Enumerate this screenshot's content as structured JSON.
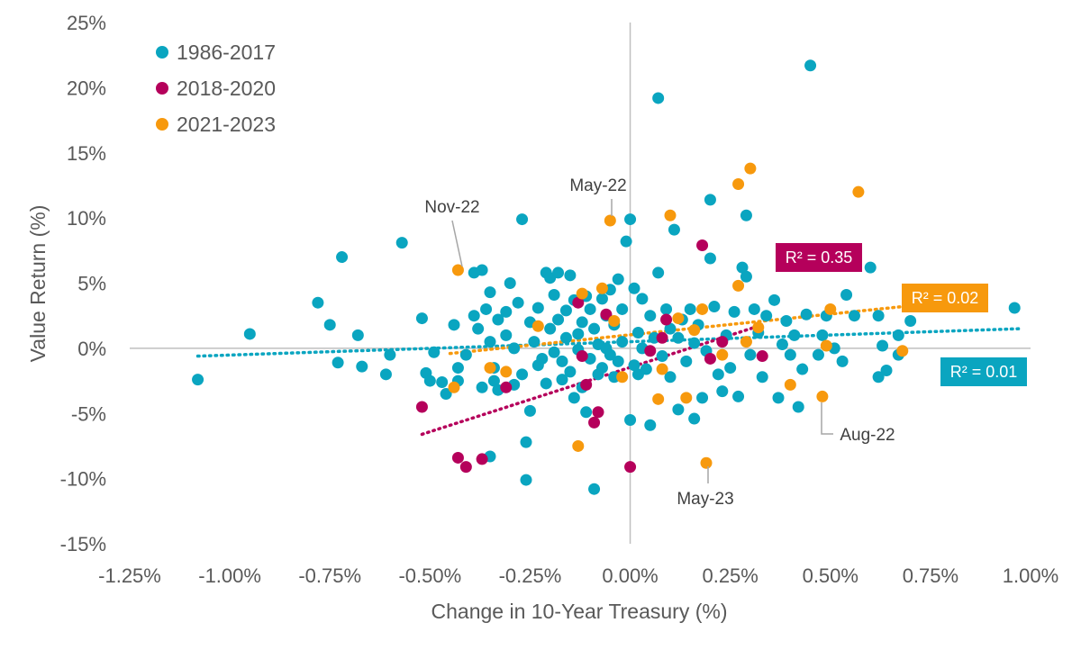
{
  "chart_data": {
    "type": "scatter",
    "xlabel": "Change in 10-Year Treasury (%)",
    "ylabel": "Value Return (%)",
    "xlim": [
      -1.25,
      1.0
    ],
    "ylim": [
      -15,
      25
    ],
    "x_ticks": [
      -1.25,
      -1.0,
      -0.75,
      -0.5,
      -0.25,
      0.0,
      0.25,
      0.5,
      0.75,
      1.0
    ],
    "x_tick_labels": [
      "-1.25%",
      "-1.00%",
      "-0.75%",
      "-0.50%",
      "-0.25%",
      "0.00%",
      "0.25%",
      "0.50%",
      "0.75%",
      "1.00%"
    ],
    "y_ticks": [
      -15,
      -10,
      -5,
      0,
      5,
      10,
      15,
      20,
      25
    ],
    "y_tick_labels": [
      "-15%",
      "-10%",
      "-5%",
      "0%",
      "5%",
      "10%",
      "15%",
      "20%",
      "25%"
    ],
    "grid": false,
    "legend_position": "top-left",
    "series": [
      {
        "name": "1986-2017",
        "color": "#0aa5c0",
        "trend": {
          "x": [
            -1.08,
            0.97
          ],
          "y": [
            -0.6,
            1.5
          ],
          "r2_label": "R² = 0.01"
        },
        "points": [
          [
            -1.08,
            -2.4
          ],
          [
            -0.95,
            1.1
          ],
          [
            -0.72,
            7.0
          ],
          [
            -0.78,
            3.5
          ],
          [
            -0.75,
            1.8
          ],
          [
            -0.73,
            -1.1
          ],
          [
            -0.68,
            1.0
          ],
          [
            -0.67,
            -1.4
          ],
          [
            -0.61,
            -2.0
          ],
          [
            -0.6,
            -0.5
          ],
          [
            -0.57,
            8.1
          ],
          [
            -0.52,
            2.3
          ],
          [
            -0.51,
            -1.9
          ],
          [
            -0.5,
            -2.5
          ],
          [
            -0.49,
            -0.3
          ],
          [
            -0.47,
            -2.6
          ],
          [
            -0.46,
            -3.5
          ],
          [
            -0.44,
            1.8
          ],
          [
            -0.43,
            -1.5
          ],
          [
            -0.43,
            -2.5
          ],
          [
            -0.41,
            -0.5
          ],
          [
            -0.39,
            2.5
          ],
          [
            -0.39,
            5.8
          ],
          [
            -0.38,
            1.5
          ],
          [
            -0.37,
            -3.0
          ],
          [
            -0.37,
            6.0
          ],
          [
            -0.36,
            3.0
          ],
          [
            -0.35,
            4.3
          ],
          [
            -0.35,
            0.5
          ],
          [
            -0.35,
            -8.3
          ],
          [
            -0.34,
            -1.5
          ],
          [
            -0.34,
            -2.5
          ],
          [
            -0.33,
            2.2
          ],
          [
            -0.33,
            -3.2
          ],
          [
            -0.31,
            1.0
          ],
          [
            -0.31,
            2.8
          ],
          [
            -0.3,
            5.0
          ],
          [
            -0.29,
            0.0
          ],
          [
            -0.29,
            -2.8
          ],
          [
            -0.28,
            3.5
          ],
          [
            -0.27,
            9.9
          ],
          [
            -0.27,
            -2.0
          ],
          [
            -0.26,
            -7.2
          ],
          [
            -0.26,
            -10.1
          ],
          [
            -0.25,
            -4.8
          ],
          [
            -0.25,
            2.0
          ],
          [
            -0.24,
            0.5
          ],
          [
            -0.23,
            -1.3
          ],
          [
            -0.23,
            3.1
          ],
          [
            -0.22,
            -0.8
          ],
          [
            -0.21,
            5.8
          ],
          [
            -0.21,
            -2.7
          ],
          [
            -0.2,
            1.5
          ],
          [
            -0.2,
            5.4
          ],
          [
            -0.19,
            -0.3
          ],
          [
            -0.19,
            4.1
          ],
          [
            -0.18,
            2.2
          ],
          [
            -0.18,
            5.8
          ],
          [
            -0.17,
            -2.4
          ],
          [
            -0.17,
            -1.0
          ],
          [
            -0.16,
            2.9
          ],
          [
            -0.16,
            0.8
          ],
          [
            -0.15,
            5.6
          ],
          [
            -0.15,
            -1.8
          ],
          [
            -0.14,
            3.7
          ],
          [
            -0.14,
            -3.8
          ],
          [
            -0.13,
            -0.1
          ],
          [
            -0.13,
            1.1
          ],
          [
            -0.12,
            -3.0
          ],
          [
            -0.12,
            2.0
          ],
          [
            -0.11,
            4.0
          ],
          [
            -0.11,
            -4.9
          ],
          [
            -0.1,
            3.0
          ],
          [
            -0.1,
            -0.8
          ],
          [
            -0.09,
            -10.8
          ],
          [
            -0.09,
            1.5
          ],
          [
            -0.08,
            -2.0
          ],
          [
            -0.08,
            0.3
          ],
          [
            -0.07,
            3.8
          ],
          [
            -0.07,
            -1.5
          ],
          [
            -0.06,
            2.5
          ],
          [
            -0.06,
            0.0
          ],
          [
            -0.05,
            4.5
          ],
          [
            -0.05,
            -0.5
          ],
          [
            -0.04,
            1.8
          ],
          [
            -0.04,
            -2.2
          ],
          [
            -0.03,
            5.3
          ],
          [
            -0.03,
            -1.0
          ],
          [
            -0.02,
            3.0
          ],
          [
            -0.02,
            0.5
          ],
          [
            -0.01,
            8.2
          ],
          [
            0.0,
            9.9
          ],
          [
            0.0,
            -5.5
          ],
          [
            0.01,
            -1.3
          ],
          [
            0.01,
            4.6
          ],
          [
            0.02,
            1.2
          ],
          [
            0.02,
            -2.0
          ],
          [
            0.03,
            3.8
          ],
          [
            0.03,
            0.0
          ],
          [
            0.04,
            -1.6
          ],
          [
            0.05,
            -5.9
          ],
          [
            0.05,
            2.5
          ],
          [
            0.06,
            0.8
          ],
          [
            0.07,
            19.2
          ],
          [
            0.07,
            5.8
          ],
          [
            0.08,
            -0.6
          ],
          [
            0.09,
            3.0
          ],
          [
            0.1,
            1.5
          ],
          [
            0.1,
            -2.2
          ],
          [
            0.11,
            9.1
          ],
          [
            0.12,
            -4.7
          ],
          [
            0.12,
            0.8
          ],
          [
            0.13,
            2.2
          ],
          [
            0.14,
            -1.0
          ],
          [
            0.15,
            3.0
          ],
          [
            0.16,
            -5.4
          ],
          [
            0.16,
            0.4
          ],
          [
            0.17,
            1.8
          ],
          [
            0.18,
            -3.8
          ],
          [
            0.19,
            -0.2
          ],
          [
            0.2,
            11.4
          ],
          [
            0.2,
            6.9
          ],
          [
            0.21,
            3.2
          ],
          [
            0.22,
            -2.0
          ],
          [
            0.23,
            -3.3
          ],
          [
            0.24,
            1.0
          ],
          [
            0.25,
            -1.5
          ],
          [
            0.26,
            2.8
          ],
          [
            0.27,
            -3.7
          ],
          [
            0.28,
            6.2
          ],
          [
            0.29,
            10.2
          ],
          [
            0.29,
            5.5
          ],
          [
            0.3,
            -0.5
          ],
          [
            0.31,
            3.0
          ],
          [
            0.32,
            1.2
          ],
          [
            0.33,
            -2.2
          ],
          [
            0.34,
            2.5
          ],
          [
            0.36,
            3.7
          ],
          [
            0.37,
            -3.8
          ],
          [
            0.38,
            0.3
          ],
          [
            0.39,
            2.1
          ],
          [
            0.4,
            -0.5
          ],
          [
            0.41,
            1.0
          ],
          [
            0.42,
            -4.5
          ],
          [
            0.43,
            -1.6
          ],
          [
            0.44,
            2.6
          ],
          [
            0.45,
            21.7
          ],
          [
            0.47,
            -0.5
          ],
          [
            0.48,
            1.0
          ],
          [
            0.49,
            2.5
          ],
          [
            0.51,
            0.0
          ],
          [
            0.53,
            -1.0
          ],
          [
            0.54,
            4.1
          ],
          [
            0.56,
            2.5
          ],
          [
            0.6,
            6.2
          ],
          [
            0.62,
            2.5
          ],
          [
            0.62,
            -2.2
          ],
          [
            0.63,
            0.2
          ],
          [
            0.64,
            -1.7
          ],
          [
            0.67,
            1.0
          ],
          [
            0.67,
            -0.5
          ],
          [
            0.7,
            2.1
          ],
          [
            0.96,
            3.1
          ]
        ]
      },
      {
        "name": "2018-2020",
        "color": "#b5005b",
        "trend": {
          "x": [
            -0.52,
            0.32
          ],
          "y": [
            -6.6,
            1.7
          ],
          "r2_label": "R² = 0.35"
        },
        "points": [
          [
            -0.52,
            -4.5
          ],
          [
            -0.43,
            -8.4
          ],
          [
            -0.41,
            -9.1
          ],
          [
            -0.37,
            -8.5
          ],
          [
            -0.31,
            -3.0
          ],
          [
            -0.13,
            3.5
          ],
          [
            -0.12,
            -0.6
          ],
          [
            -0.11,
            -2.8
          ],
          [
            -0.09,
            -5.7
          ],
          [
            -0.08,
            -4.9
          ],
          [
            -0.06,
            2.6
          ],
          [
            0.0,
            -9.1
          ],
          [
            0.05,
            -0.2
          ],
          [
            0.08,
            0.8
          ],
          [
            0.09,
            2.2
          ],
          [
            0.18,
            7.9
          ],
          [
            0.2,
            -0.8
          ],
          [
            0.23,
            0.5
          ],
          [
            0.33,
            -0.6
          ]
        ]
      },
      {
        "name": "2021-2023",
        "color": "#f7990d",
        "trend": {
          "x": [
            -0.45,
            0.68
          ],
          "y": [
            -0.4,
            3.2
          ],
          "r2_label": "R² = 0.02"
        },
        "points": [
          [
            -0.43,
            6.0
          ],
          [
            -0.44,
            -3.0
          ],
          [
            -0.35,
            -1.5
          ],
          [
            -0.31,
            -1.8
          ],
          [
            -0.23,
            1.7
          ],
          [
            -0.13,
            -7.5
          ],
          [
            -0.12,
            4.2
          ],
          [
            -0.07,
            4.6
          ],
          [
            -0.05,
            9.8
          ],
          [
            -0.04,
            2.1
          ],
          [
            -0.02,
            -2.2
          ],
          [
            0.07,
            -3.9
          ],
          [
            0.08,
            -1.6
          ],
          [
            0.1,
            10.2
          ],
          [
            0.12,
            2.3
          ],
          [
            0.14,
            -3.8
          ],
          [
            0.16,
            1.4
          ],
          [
            0.18,
            3.0
          ],
          [
            0.19,
            -8.8
          ],
          [
            0.23,
            -0.5
          ],
          [
            0.27,
            12.6
          ],
          [
            0.27,
            4.8
          ],
          [
            0.29,
            0.5
          ],
          [
            0.3,
            13.8
          ],
          [
            0.32,
            1.6
          ],
          [
            0.4,
            -2.8
          ],
          [
            0.48,
            -3.7
          ],
          [
            0.49,
            0.2
          ],
          [
            0.5,
            3.0
          ],
          [
            0.57,
            12.0
          ],
          [
            0.68,
            -0.2
          ]
        ]
      }
    ],
    "annotations": [
      {
        "text": "Nov-22",
        "x": -0.43,
        "y": 6.0
      },
      {
        "text": "May-22",
        "x": -0.05,
        "y": 9.8
      },
      {
        "text": "Aug-22",
        "x": 0.48,
        "y": -3.7
      },
      {
        "text": "May-23",
        "x": 0.19,
        "y": -8.8
      }
    ]
  }
}
